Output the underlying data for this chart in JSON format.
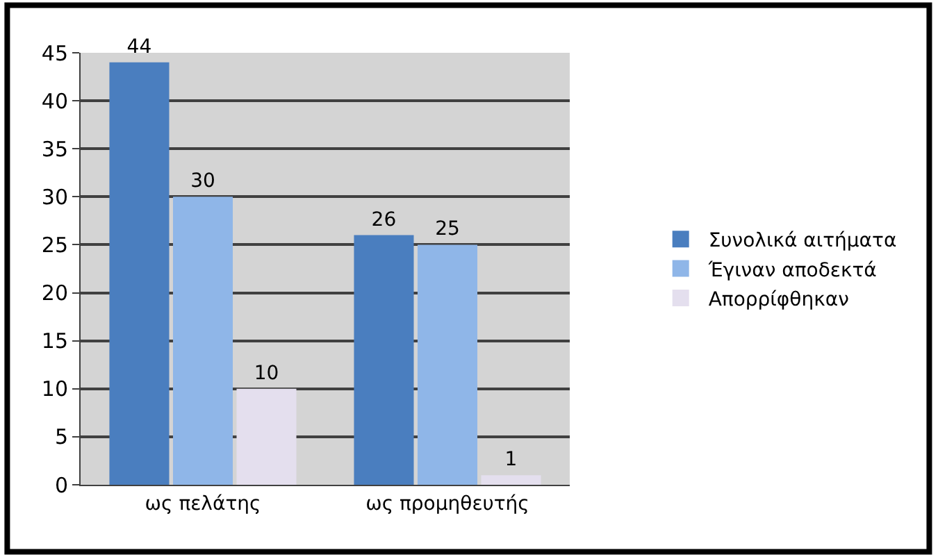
{
  "chart_data": {
    "type": "bar",
    "categories": [
      "ως πελάτης",
      "ως προμηθευτής"
    ],
    "series": [
      {
        "name": "Συνολικά αιτήματα",
        "color": "#4a7ebf",
        "values": [
          44,
          26
        ]
      },
      {
        "name": "Έγιναν αποδεκτά",
        "color": "#8fb6e8",
        "values": [
          30,
          25
        ]
      },
      {
        "name": "Απορρίφθηκαν",
        "color": "#e4dfee",
        "values": [
          10,
          1
        ]
      }
    ],
    "ylim": [
      0,
      45
    ],
    "yticks": [
      0,
      5,
      10,
      15,
      20,
      25,
      30,
      35,
      40,
      45
    ],
    "grid": "y",
    "legend": "right",
    "data_labels": true
  }
}
